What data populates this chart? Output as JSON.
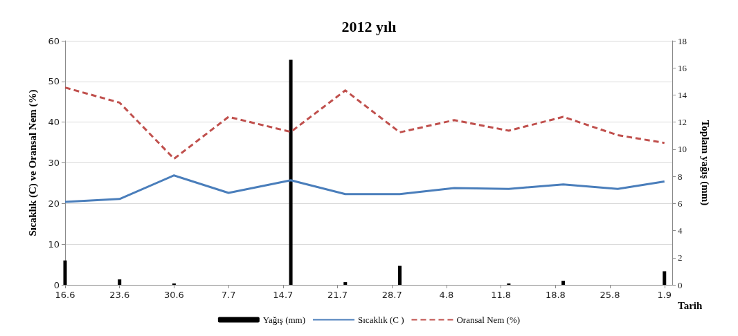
{
  "chart_data": {
    "type": "line",
    "title": "2012 yılı",
    "xlabel": "Tarih",
    "ylabel": "Sıcaklık (C) ve Oransal Nem (%)",
    "y2label": "Toplam yağış (mm)",
    "x": [
      "--06-16",
      "--06-23",
      "--06-30",
      "--07-07",
      "--07-15",
      "--07-22",
      "--07-29",
      "--08-05",
      "--08-12",
      "--08-19",
      "--08-26",
      "--09-01"
    ],
    "series": [
      {
        "name": "Yağış (mm)",
        "type": "bar",
        "axis": "y2",
        "color": "#000000",
        "values": [
          1.8,
          0.4,
          0.1,
          0,
          16.6,
          0.2,
          1.4,
          0,
          0.1,
          0.3,
          0,
          1.0
        ]
      },
      {
        "name": "Sıcaklık (C )",
        "color": "#4a7ebb",
        "line_style": "solid",
        "values": [
          20.4,
          21.1,
          26.9,
          22.6,
          25.7,
          22.3,
          22.3,
          23.8,
          23.6,
          24.7,
          23.6,
          25.4
        ]
      },
      {
        "name": "Oransal Nem (%)",
        "color": "#c0504d",
        "line_style": "dashed",
        "values": [
          48.5,
          44.8,
          31.0,
          41.3,
          37.6,
          47.8,
          37.5,
          40.5,
          37.9,
          41.3,
          36.8,
          34.9
        ]
      }
    ],
    "xlim": [
      "--06-16",
      "--09-02"
    ],
    "xticks": [
      {
        "value": "--06-16",
        "label": "16.6"
      },
      {
        "value": "--06-23",
        "label": "23.6"
      },
      {
        "value": "--06-30",
        "label": "30.6"
      },
      {
        "value": "--07-07",
        "label": "7.7"
      },
      {
        "value": "--07-14",
        "label": "14.7"
      },
      {
        "value": "--07-21",
        "label": "21.7"
      },
      {
        "value": "--07-28",
        "label": "28.7"
      },
      {
        "value": "--08-04",
        "label": "4.8"
      },
      {
        "value": "--08-11",
        "label": "11.8"
      },
      {
        "value": "--08-18",
        "label": "18.8"
      },
      {
        "value": "--08-25",
        "label": "25.8"
      },
      {
        "value": "--09-01",
        "label": "1.9"
      }
    ],
    "ylim": [
      0,
      60
    ],
    "yticks": [
      0,
      10,
      20,
      30,
      40,
      50,
      60
    ],
    "y2lim": [
      0,
      18
    ],
    "y2ticks": [
      0,
      2,
      4,
      6,
      8,
      10,
      12,
      14,
      16,
      18
    ],
    "grid": "y",
    "legend": "bottom",
    "marker": "none"
  }
}
